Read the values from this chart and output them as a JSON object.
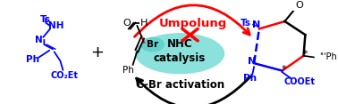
{
  "bg_color": "#ffffff",
  "oval_color": "#7FDED8",
  "nhc_text": "NHC\ncatalysis",
  "nhc_fontsize": 8.5,
  "umpolung_text": "Umpolung",
  "umpolung_color": "#FF0000",
  "umpolung_fontsize": 9.5,
  "cbr_text": "C-Br activation",
  "cbr_fontsize": 8.5,
  "cbr_color": "#000000",
  "ts_color": "#0000FF",
  "ph_color": "#0000FF",
  "black_color": "#000000",
  "red_color": "#FF0000",
  "br_color": "#5ECFCA",
  "figsize": [
    3.78,
    1.17
  ],
  "dpi": 100
}
